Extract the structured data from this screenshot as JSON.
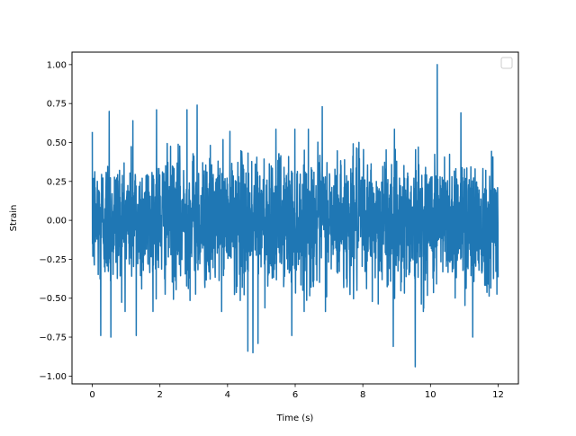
{
  "chart_data": {
    "type": "line",
    "title": "",
    "xlabel": "Time (s)",
    "ylabel": "Strain",
    "xlim": [
      -0.6,
      12.6
    ],
    "ylim": [
      -1.05,
      1.08
    ],
    "xticks": [
      0,
      2,
      4,
      6,
      8,
      10,
      12
    ],
    "xtick_labels": [
      "0",
      "2",
      "4",
      "6",
      "8",
      "10",
      "12"
    ],
    "yticks": [
      -1.0,
      -0.75,
      -0.5,
      -0.25,
      0.0,
      0.25,
      0.5,
      0.75,
      1.0
    ],
    "ytick_labels": [
      "−1.00",
      "−0.75",
      "−0.50",
      "−0.25",
      "0.00",
      "0.25",
      "0.50",
      "0.75",
      "1.00"
    ],
    "grid": false,
    "legend": {
      "location": "upper right",
      "entries": []
    },
    "series": [
      {
        "color": "#1f77b4",
        "x_range": [
          0,
          12
        ],
        "y_envelope": {
          "typical_min": -0.45,
          "typical_max": 0.45
        },
        "notable_points": [
          {
            "x": 0.5,
            "y": 0.7
          },
          {
            "x": 1.2,
            "y": 0.64
          },
          {
            "x": 1.9,
            "y": 0.71
          },
          {
            "x": 2.8,
            "y": 0.71
          },
          {
            "x": 3.1,
            "y": 0.74
          },
          {
            "x": 4.6,
            "y": 0.73
          },
          {
            "x": 6.8,
            "y": 0.73
          },
          {
            "x": 10.2,
            "y": 1.0
          },
          {
            "x": 10.9,
            "y": 0.69
          },
          {
            "x": 0.25,
            "y": -0.74
          },
          {
            "x": 0.55,
            "y": -0.75
          },
          {
            "x": 1.3,
            "y": -0.74
          },
          {
            "x": 4.6,
            "y": -0.84
          },
          {
            "x": 4.75,
            "y": -0.85
          },
          {
            "x": 4.9,
            "y": -0.79
          },
          {
            "x": 5.9,
            "y": -0.74
          },
          {
            "x": 8.9,
            "y": -0.81
          },
          {
            "x": 9.55,
            "y": -0.94
          },
          {
            "x": 11.25,
            "y": -0.75
          }
        ]
      }
    ]
  }
}
